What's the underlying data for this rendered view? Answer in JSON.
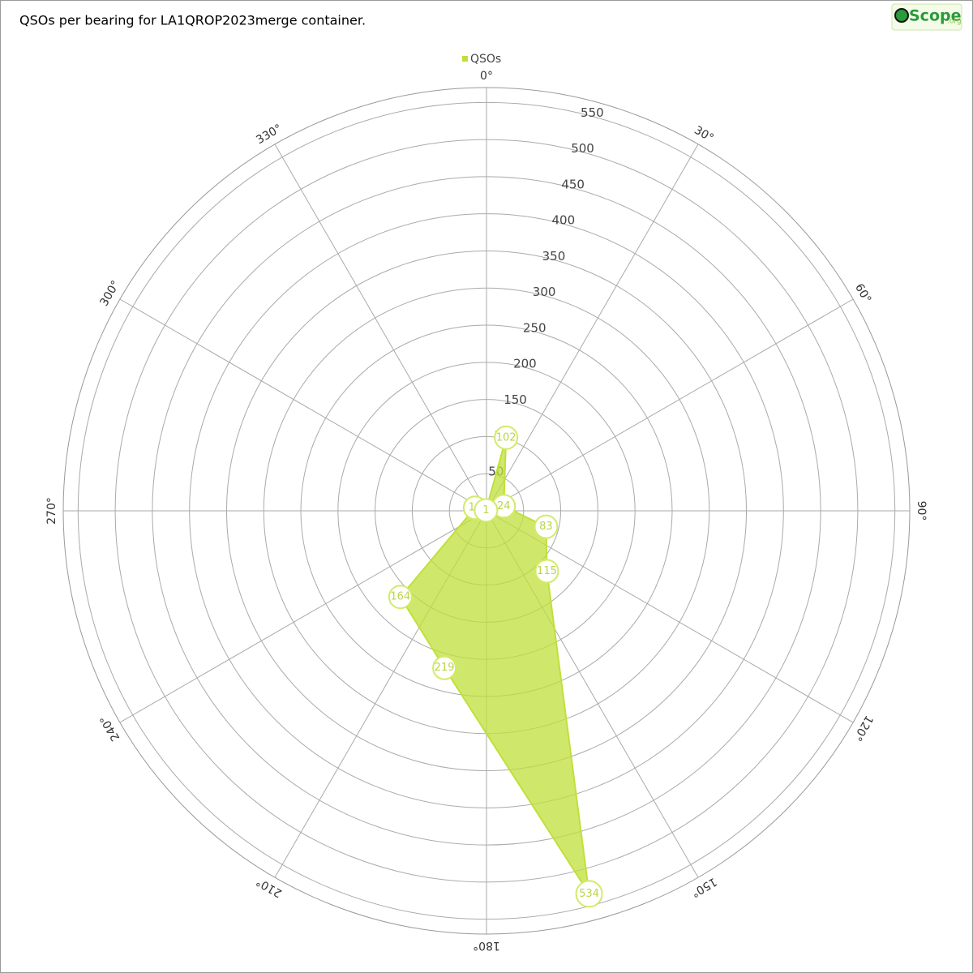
{
  "chart_data": {
    "type": "polar-area",
    "title": "QSOs per bearing for LA1QROP2023merge container.",
    "x": [
      15,
      75,
      105,
      135,
      165,
      195,
      225,
      285,
      315
    ],
    "series": [
      {
        "name": "QSOs",
        "color": "#bfe03a",
        "values": [
          102,
          24,
          83,
          115,
          534,
          219,
          164,
          16,
          1
        ]
      }
    ],
    "xlim": [
      0,
      360
    ],
    "xticks": [
      {
        "value": 0,
        "label": "0°"
      },
      {
        "value": 30,
        "label": "30°"
      },
      {
        "value": 60,
        "label": "60°"
      },
      {
        "value": 90,
        "label": "90°"
      },
      {
        "value": 120,
        "label": "120°"
      },
      {
        "value": 150,
        "label": "150°"
      },
      {
        "value": 180,
        "label": "180°"
      },
      {
        "value": 210,
        "label": "210°"
      },
      {
        "value": 240,
        "label": "240°"
      },
      {
        "value": 270,
        "label": "270°"
      },
      {
        "value": 300,
        "label": "300°"
      },
      {
        "value": 330,
        "label": "330°"
      }
    ],
    "ylim": [
      0,
      570
    ],
    "yticks": [
      50,
      100,
      150,
      200,
      250,
      300,
      350,
      400,
      450,
      500,
      550
    ],
    "grid": true
  },
  "logo": {
    "text": "Scope",
    "suffix": ".org"
  }
}
